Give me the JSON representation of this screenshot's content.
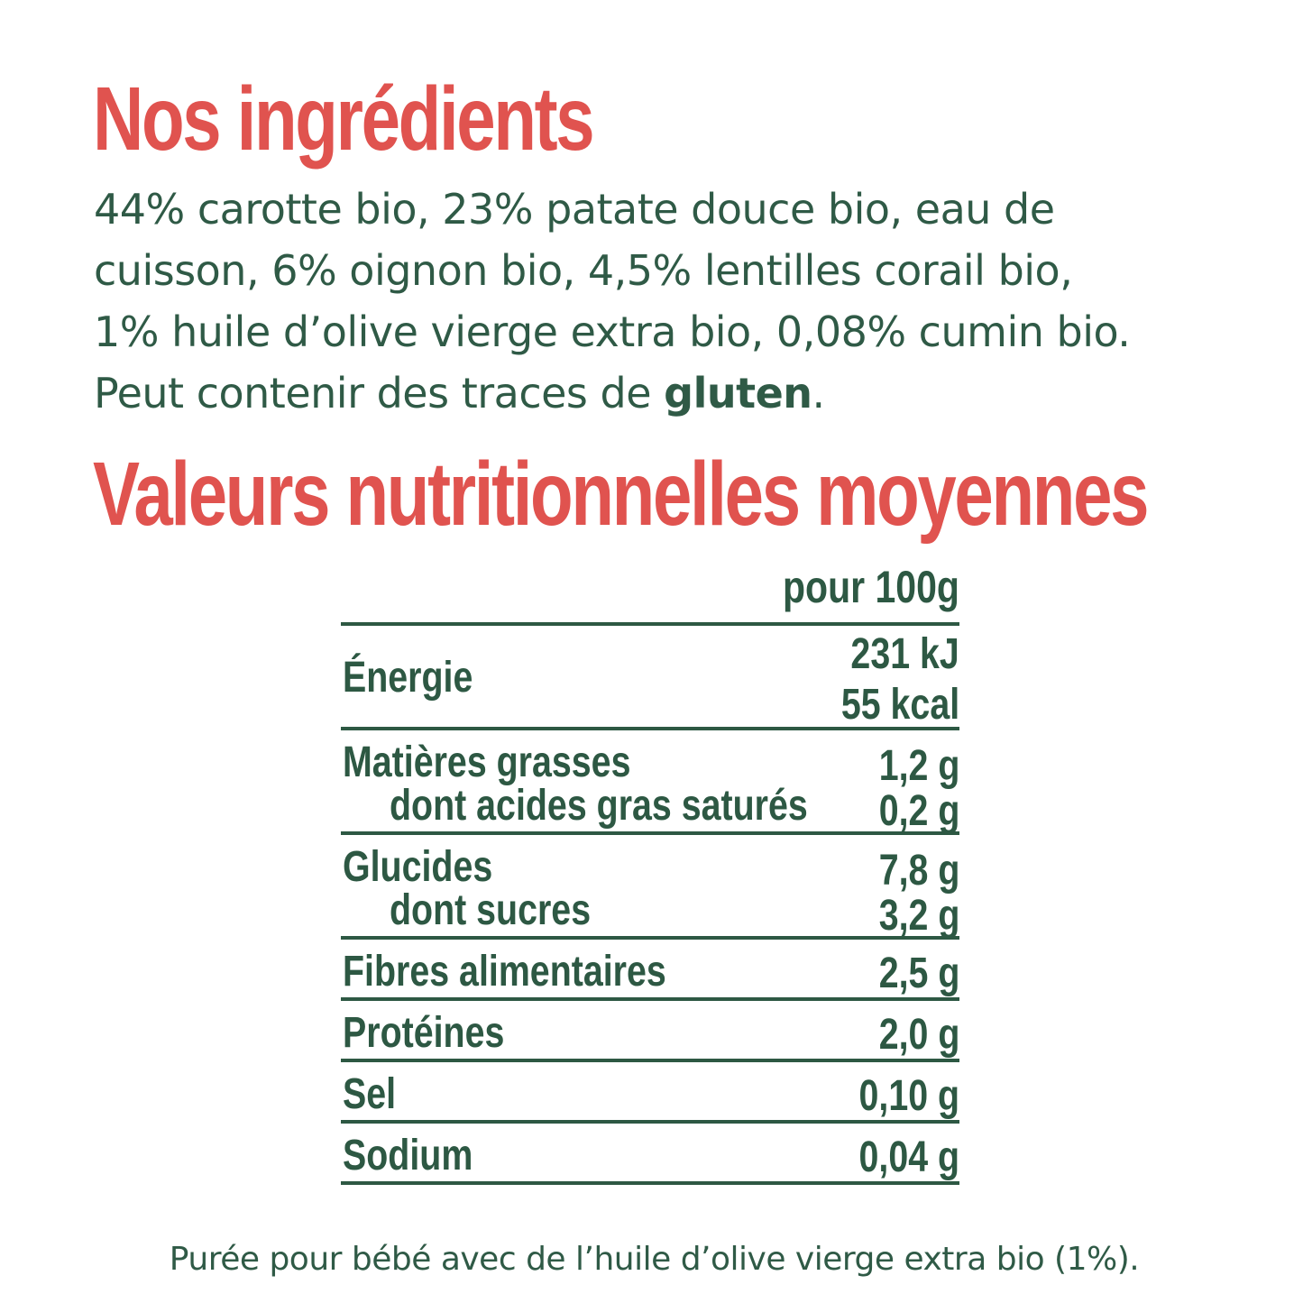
{
  "ingredients": {
    "title": "Nos ingrédients",
    "line1": "44% carotte bio, 23% patate douce bio, eau de",
    "line2": "cuisson, 6% oignon bio, 4,5% lentilles corail bio,",
    "line3": "1% huile d’olive vierge extra bio, 0,08% cumin bio.",
    "line4_prefix": "Peut contenir des traces de ",
    "line4_bold": "gluten",
    "line4_suffix": "."
  },
  "nutrition": {
    "title": "Valeurs nutritionnelles moyennes",
    "column_header": "pour 100g",
    "rows": [
      {
        "label": "Énergie",
        "values": [
          "231 kJ",
          "55 kcal"
        ]
      },
      {
        "label": "Matières grasses",
        "value": "1,2 g",
        "sub_label": "dont acides gras saturés",
        "sub_value": "0,2 g"
      },
      {
        "label": "Glucides",
        "value": "7,8 g",
        "sub_label": "dont sucres",
        "sub_value": "3,2 g"
      },
      {
        "label": "Fibres alimentaires",
        "value": "2,5 g"
      },
      {
        "label": "Protéines",
        "value": "2,0 g"
      },
      {
        "label": "Sel",
        "value": "0,10 g"
      },
      {
        "label": "Sodium",
        "value": "0,04 g"
      }
    ]
  },
  "footer": {
    "text": "Purée pour bébé avec de l’huile d’olive vierge extra bio (1%)."
  },
  "colors": {
    "heading": "#e0534f",
    "text": "#2f5a46"
  }
}
